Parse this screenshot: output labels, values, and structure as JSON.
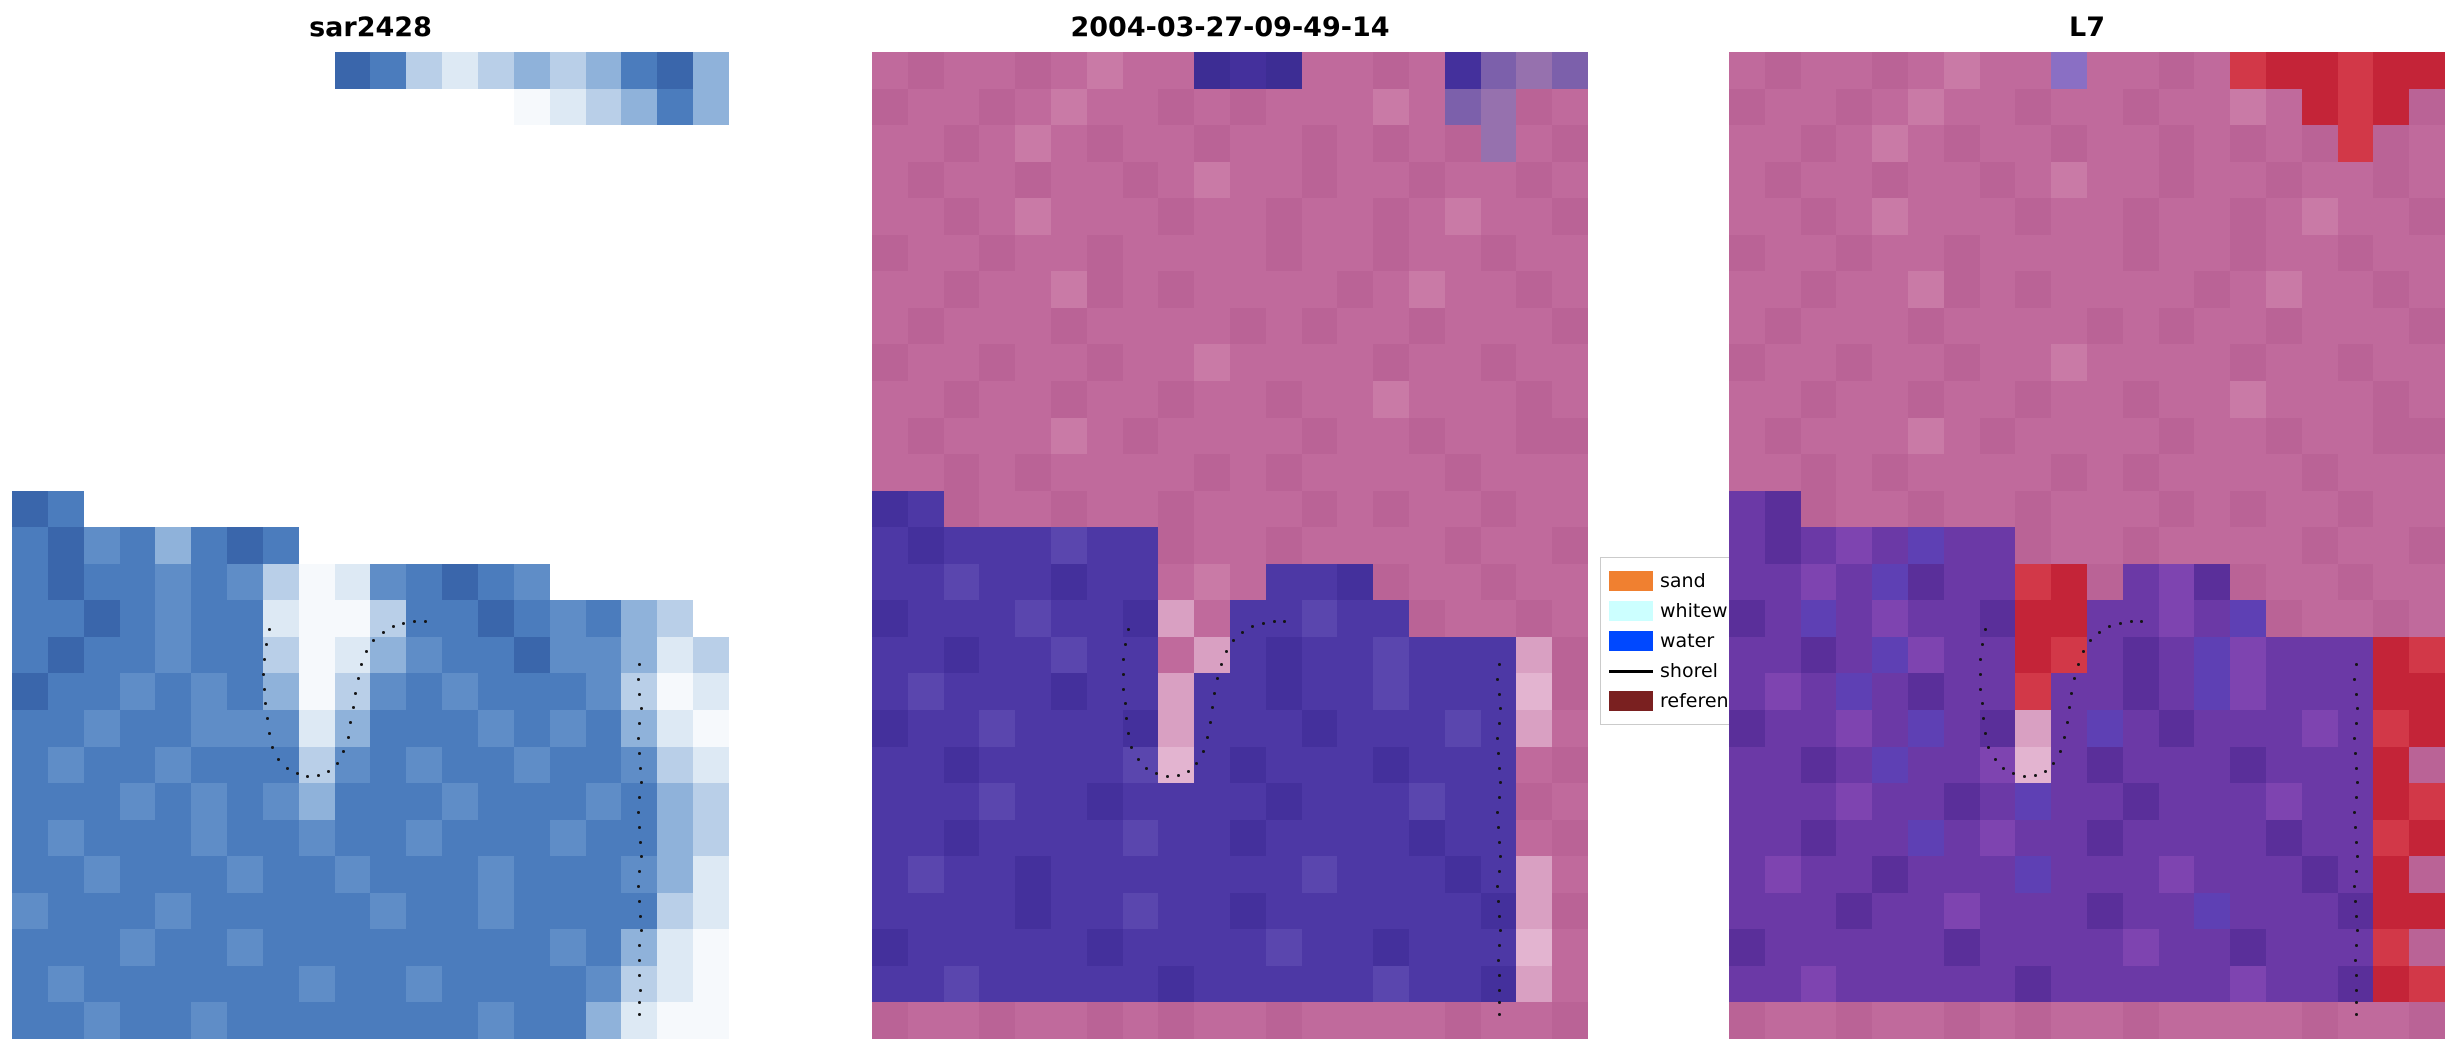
{
  "chart_data": {
    "type": "heatmap",
    "description_kind": "three pixelated image panels with shoreline dots and legend",
    "grid": {
      "cols": 20,
      "rows": 27
    },
    "panels": [
      {
        "id": "sar2428",
        "title": "sar2428",
        "palette": {
          "a": "#3a66ab",
          "b": "#4b7cbd",
          "c": "#5f8dc7",
          "d": "#8fb2da",
          "e": "#b9cfe8",
          "f": "#dde9f4",
          "g": "#f6f9fc"
        },
        "rows": [
          ".........abefededbad",
          "..............gfedbd",
          "....................",
          "....................",
          "....................",
          "....................",
          "....................",
          "....................",
          "....................",
          "....................",
          "....................",
          "....................",
          "ab..................",
          "bacbdbab............",
          "babbcbcegfcbabc.....",
          "bbabcbbfggebbabcbde.",
          "babbcbbegfdcbbaccdfe",
          "abbcbcbdgecbcbbbcegf",
          "bbcbbcccfdbbbcbcbdfg",
          "bcbbcbbbecbcbbcbbcef",
          "bbbcbcbcdbbbcbbbcbde",
          "bcbbbcbbcbbcbbbcbbde",
          "bbcbbbcbbcbbbcbbbcdf",
          "cbbbcbbbbbcbbcbbbbef",
          "bbbcbbcbbbbbbbbcbdfg",
          "bcbbbbbbcbbcbbbbcefg",
          "bbcbbcbbbbbbbcbbdfgg"
        ]
      },
      {
        "id": "t2004",
        "title": "2004-03-27-09-49-14",
        "palette": {
          "p": "#c06a9c",
          "q": "#ba6396",
          "r": "#c97aa6",
          "l": "#d9a0c2",
          "m": "#e3b4d0",
          "d": "#4d38a5",
          "e": "#44309c",
          "f": "#5a46ae",
          "u": "#7c60ab",
          "v": "#9671ae",
          "w": "#3d2d94"
        },
        "rows": [
          "pqppqprppwewppqpeuvu",
          "qppqprppqpqppprpuvqp",
          "ppqprpqppqppqpqpqvpq",
          "pqppqppqprppqppqppqp",
          "ppqprpppqppqppqprppq",
          "qppqppqppppqppqppqpp",
          "ppqpprqpqppppqprppqp",
          "pqpppqppppqpqppqpppq",
          "qppqppqpprppppqppqpp",
          "ppqppqppqppqpprpppqp",
          "pqppprpqppppqppqppqq",
          "ppqpqppppqpqppppqppp",
          "edqppqppqpppqpqppqpp",
          "dedddfddqppqppppqppq",
          "ddfddeddprpddeqppqpp",
          "edddfddelpddfddqppqp",
          "ddeddfddpldeddfdddlq",
          "dfdddeddlddeddfdddmq",
          "eddfdddeldddedddfdlp",
          "ddeddddfmdedddedddpq",
          "dddfddeddddedddfddqp",
          "ddeddddfddeddddeddpq",
          "dfddedddddddfdddedlp",
          "ddddeddfddeddddddelq",
          "edddddeddddfddedddmp",
          "ddfdddddedddddfddelp",
          "qppqppqpqppqppppqppq"
        ]
      },
      {
        "id": "L7",
        "title": "L7",
        "palette": {
          "p": "#c06a9c",
          "q": "#ba6396",
          "r": "#c97aa6",
          "l": "#d9a0c2",
          "m": "#e3b4d0",
          "d": "#6b39a6",
          "e": "#5a2f9a",
          "f": "#7e44b0",
          "h": "#5e40b4",
          "v": "#8a6fc4",
          "x": "#c42438",
          "y": "#d23848"
        },
        "rows": [
          "pqppqprppvppqpyxxyxx",
          "qppqprppqppqpprpxyxq",
          "ppqprpqppqppqpqpqyqp",
          "pqppqppqprppqppqppqp",
          "ppqprpppqppqppqprppq",
          "qppqppqppppqppqppqpp",
          "ppqpprqpqppppqprppqp",
          "pqpppqppppqpqppqpppq",
          "qppqppqpprppppqppqpp",
          "ppqppqppqppqpprpppqp",
          "pqppprpqppppqppqppqq",
          "ppqpqppppqpqppppqppp",
          "deqppqppqpppqpqppqpp",
          "dedfdhddqppqppppqppq",
          "ddfdheddyxqdfeqppqpp",
          "edhdfddexxddfdhqppqp",
          "ddedhfddxydedhfdddxy",
          "dfdhdeddyddedhfdddxx",
          "eddfdhdeldhdedddfdyx",
          "ddedhddfmdedddedddxq",
          "dddfddedhddedddfddxy",
          "ddeddhdfddeddddeddyx",
          "dfddedddhdddfdddedxq",
          "dddeddfdddeddhdddexx",
          "edddddeddddfddedddyq",
          "ddfdddddedddddfddexy",
          "qppqppqpqppqppppqppq"
        ]
      }
    ],
    "shoreline_dots": [
      [
        0.358,
        0.585
      ],
      [
        0.354,
        0.6
      ],
      [
        0.351,
        0.615
      ],
      [
        0.35,
        0.63
      ],
      [
        0.351,
        0.645
      ],
      [
        0.353,
        0.66
      ],
      [
        0.355,
        0.675
      ],
      [
        0.358,
        0.69
      ],
      [
        0.362,
        0.704
      ],
      [
        0.371,
        0.716
      ],
      [
        0.383,
        0.725
      ],
      [
        0.397,
        0.731
      ],
      [
        0.412,
        0.734
      ],
      [
        0.427,
        0.733
      ],
      [
        0.441,
        0.728
      ],
      [
        0.453,
        0.72
      ],
      [
        0.462,
        0.708
      ],
      [
        0.468,
        0.694
      ],
      [
        0.472,
        0.679
      ],
      [
        0.475,
        0.664
      ],
      [
        0.478,
        0.649
      ],
      [
        0.482,
        0.634
      ],
      [
        0.487,
        0.62
      ],
      [
        0.494,
        0.607
      ],
      [
        0.504,
        0.596
      ],
      [
        0.517,
        0.588
      ],
      [
        0.531,
        0.582
      ],
      [
        0.546,
        0.579
      ],
      [
        0.561,
        0.577
      ],
      [
        0.576,
        0.577
      ],
      [
        0.875,
        0.62
      ],
      [
        0.873,
        0.635
      ],
      [
        0.875,
        0.65
      ],
      [
        0.877,
        0.665
      ],
      [
        0.875,
        0.68
      ],
      [
        0.873,
        0.695
      ],
      [
        0.874,
        0.71
      ],
      [
        0.876,
        0.725
      ],
      [
        0.877,
        0.74
      ],
      [
        0.875,
        0.755
      ],
      [
        0.873,
        0.77
      ],
      [
        0.874,
        0.785
      ],
      [
        0.876,
        0.8
      ],
      [
        0.877,
        0.815
      ],
      [
        0.875,
        0.83
      ],
      [
        0.873,
        0.845
      ],
      [
        0.874,
        0.86
      ],
      [
        0.876,
        0.875
      ],
      [
        0.877,
        0.89
      ],
      [
        0.875,
        0.905
      ],
      [
        0.874,
        0.92
      ],
      [
        0.875,
        0.935
      ],
      [
        0.876,
        0.95
      ],
      [
        0.875,
        0.963
      ],
      [
        0.875,
        0.975
      ]
    ],
    "legend": {
      "position": "between panel 2 and panel 3, clipped by panel 3",
      "entries": [
        {
          "label": "sand",
          "swatch": "patch",
          "color": "#f08030"
        },
        {
          "label": "whitew",
          "swatch": "patch",
          "color": "#ccffff"
        },
        {
          "label": "water",
          "swatch": "patch",
          "color": "#0048ff"
        },
        {
          "label": "shorel",
          "swatch": "line",
          "color": "#000000"
        },
        {
          "label": "referen",
          "swatch": "patch",
          "color": "#7a2020"
        }
      ]
    }
  }
}
